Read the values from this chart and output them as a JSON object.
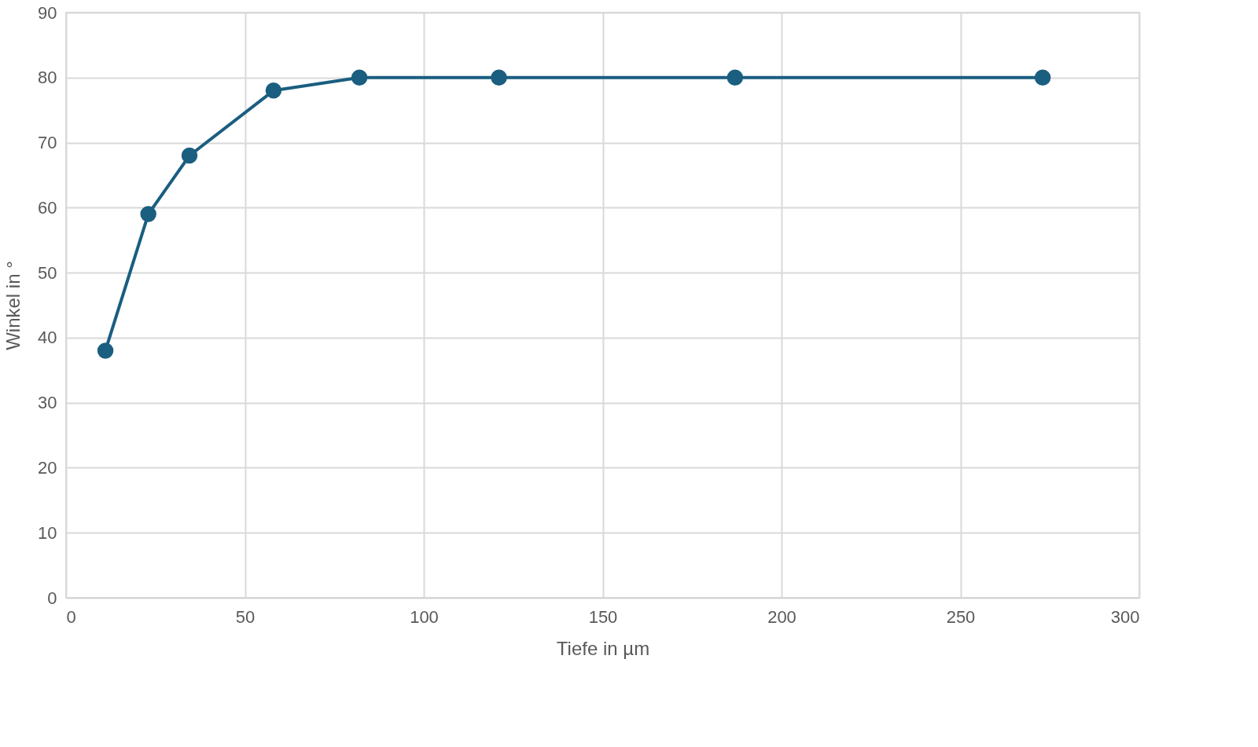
{
  "chart_data": {
    "type": "line",
    "xlabel": "Tiefe in µm",
    "ylabel": "Winkel in °",
    "x": [
      11,
      23,
      34.5,
      58,
      82,
      121,
      187,
      273
    ],
    "series": [
      {
        "color": "#1a5e80",
        "values": [
          38,
          59,
          68,
          78,
          80,
          80,
          80,
          80
        ]
      }
    ],
    "xlim": [
      0,
      300
    ],
    "xticks": [
      0,
      50,
      100,
      150,
      200,
      250,
      300
    ],
    "ylim": [
      0,
      90
    ],
    "yticks": [
      0,
      10,
      20,
      30,
      40,
      50,
      60,
      70,
      80,
      90
    ],
    "grid": true,
    "marker": "circle",
    "line_style": "solid"
  }
}
